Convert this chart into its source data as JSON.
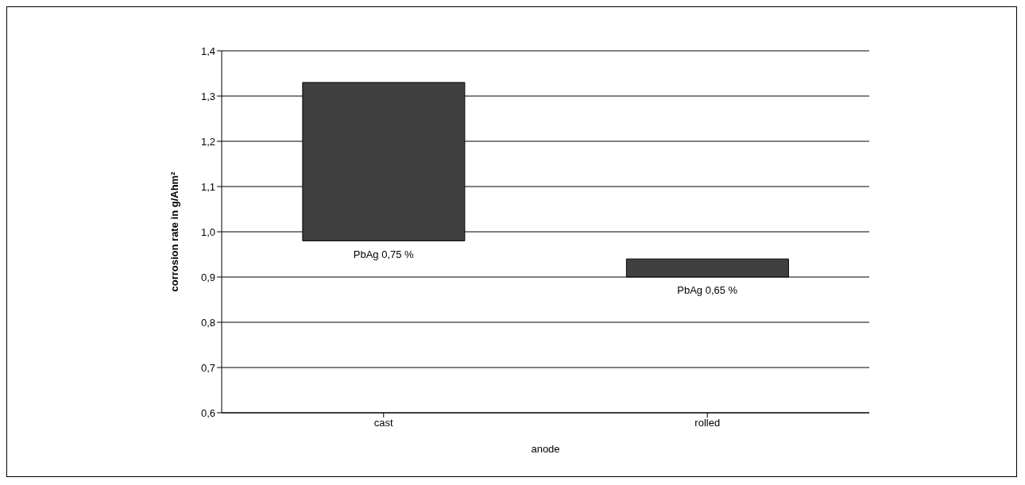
{
  "chart_data": {
    "type": "bar",
    "xlabel": "anode",
    "ylabel": "corrosion rate in g/Ahm²",
    "categories": [
      "cast",
      "rolled"
    ],
    "values": [
      0.35,
      0.04
    ],
    "base": [
      0.98,
      0.9
    ],
    "color": "#404040",
    "ylim": [
      0.6,
      1.4
    ],
    "yticks": [
      {
        "value": 0.6,
        "label": "0,6"
      },
      {
        "value": 0.7,
        "label": "0,7"
      },
      {
        "value": 0.8,
        "label": "0,8"
      },
      {
        "value": 0.9,
        "label": "0,9"
      },
      {
        "value": 1.0,
        "label": "1,0"
      },
      {
        "value": 1.1,
        "label": "1,1"
      },
      {
        "value": 1.2,
        "label": "1,2"
      },
      {
        "value": 1.3,
        "label": "1,3"
      },
      {
        "value": 1.4,
        "label": "1,4"
      }
    ],
    "grid": "y",
    "annotations": [
      {
        "text": "PbAg 0,75 %",
        "x": "cast",
        "y": 0.98
      },
      {
        "text": "PbAg 0,65 %",
        "x": "rolled",
        "y": 0.9
      }
    ]
  }
}
